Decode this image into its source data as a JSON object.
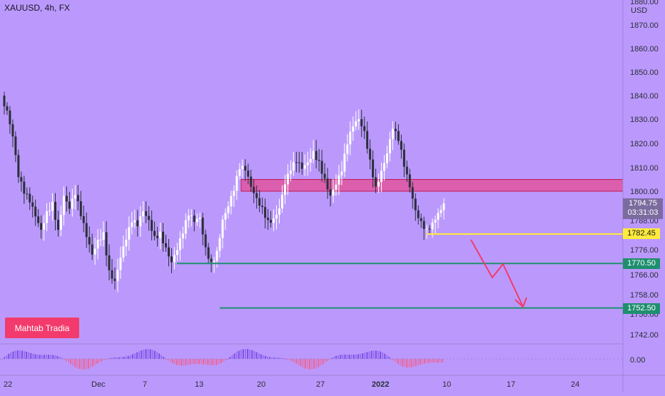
{
  "header": {
    "symbol": "XAUUSD, 4h, FX"
  },
  "watermark": "Mahtab Tradia",
  "currency": "USD",
  "last_price": "1794.75",
  "countdown": "03:31:03",
  "levels": [
    {
      "label": "1782.45",
      "value": 1782.45,
      "color": "#ffeb3b"
    },
    {
      "label": "1770.50",
      "value": 1770.5,
      "color": "#1e8f6e"
    },
    {
      "label": "1752.50",
      "value": 1752.5,
      "color": "#1e8f6e"
    }
  ],
  "zone": {
    "from": 1800,
    "to": 1805,
    "color": "#e0559f"
  },
  "colors": {
    "background": "#bb99fc",
    "up_candle": "#ffffff",
    "down_candle": "#2a2e39",
    "arrow": "#f23b6c",
    "osc_up": "#7b4de8",
    "osc_down": "#f06292"
  },
  "chart_data": {
    "type": "candlestick",
    "symbol": "XAUUSD",
    "timeframe": "4h",
    "y_ticks": [
      1880,
      1870,
      1860,
      1850,
      1840,
      1830,
      1820,
      1810,
      1800,
      1788,
      1776,
      1766,
      1758,
      1750,
      1742
    ],
    "y_tick_labels": [
      "1880.00",
      "1870.00",
      "1860.00",
      "1850.00",
      "1840.00",
      "1830.00",
      "1820.00",
      "1810.00",
      "1800.00",
      "1788.00",
      "1776.00",
      "1766.00",
      "1758.00",
      "1750.00",
      "1742.00"
    ],
    "x_tick_labels": [
      "22",
      "Dec",
      "7",
      "13",
      "20",
      "27",
      "2022",
      "10",
      "17",
      "24"
    ],
    "oscillator_label": "0.00",
    "close_path": [
      1840,
      1835,
      1825,
      1808,
      1800,
      1795,
      1788,
      1782,
      1790,
      1795,
      1785,
      1800,
      1795,
      1800,
      1790,
      1780,
      1772,
      1778,
      1782,
      1768,
      1765,
      1775,
      1782,
      1788,
      1785,
      1790,
      1786,
      1780,
      1783,
      1778,
      1773,
      1778,
      1784,
      1790,
      1786,
      1787,
      1775,
      1770,
      1776,
      1790,
      1796,
      1802,
      1810,
      1808,
      1800,
      1795,
      1792,
      1788,
      1790,
      1795,
      1805,
      1810,
      1812,
      1808,
      1810,
      1815,
      1812,
      1806,
      1800,
      1805,
      1810,
      1820,
      1826,
      1828,
      1823,
      1812,
      1802,
      1810,
      1818,
      1828,
      1822,
      1810,
      1800,
      1790,
      1786,
      1784,
      1788,
      1793,
      1795
    ]
  }
}
